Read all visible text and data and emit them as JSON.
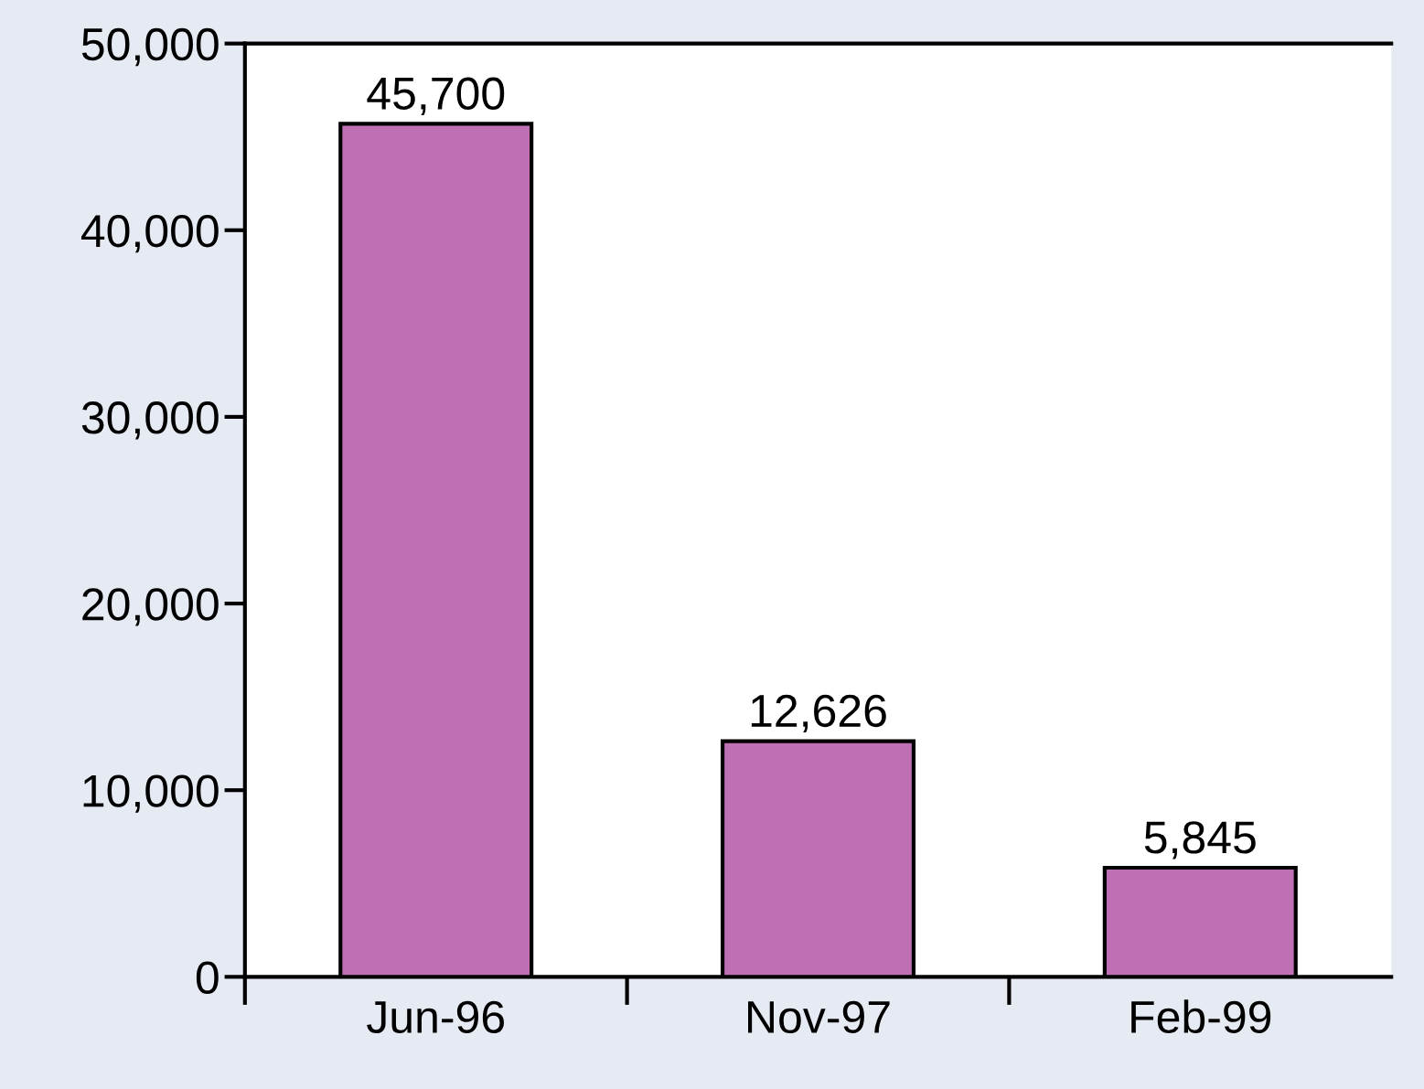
{
  "chart_data": {
    "type": "bar",
    "categories": [
      "Jun-96",
      "Nov-97",
      "Feb-99"
    ],
    "values": [
      45700,
      12626,
      5845
    ],
    "color": "#bf70b4",
    "value_labels": [
      "45,700",
      "12,626",
      "5,845"
    ],
    "ylim": [
      0,
      50000
    ],
    "yticks": [
      {
        "value": 0,
        "label": "0"
      },
      {
        "value": 10000,
        "label": "10,000"
      },
      {
        "value": 20000,
        "label": "20,000"
      },
      {
        "value": 30000,
        "label": "30,000"
      },
      {
        "value": 40000,
        "label": "40,000"
      },
      {
        "value": 50000,
        "label": "50,000"
      }
    ],
    "legend": false
  }
}
